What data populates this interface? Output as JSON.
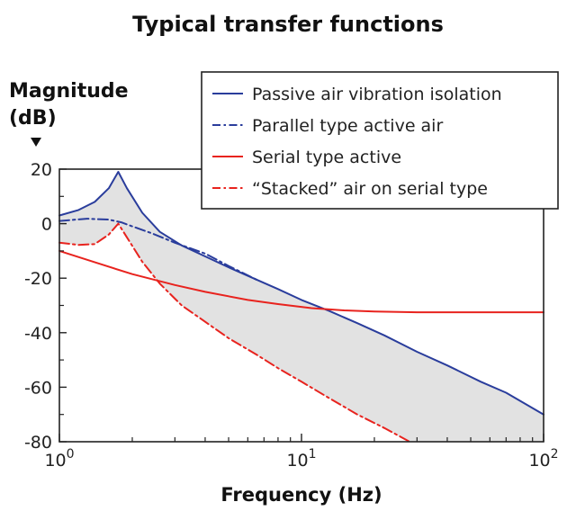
{
  "chart_data": {
    "type": "line",
    "title": "Typical transfer functions",
    "ylabel_line1": "Magnitude",
    "ylabel_line2": "(dB)",
    "xlabel": "Frequency (Hz)",
    "x_scale": "log",
    "xlim": [
      1,
      100
    ],
    "ylim": [
      -80,
      20
    ],
    "grid": false,
    "legend_position": "top-right",
    "x_ticks": [
      {
        "value": 1,
        "base": "10",
        "exp": "0"
      },
      {
        "value": 10,
        "base": "10",
        "exp": "1"
      },
      {
        "value": 100,
        "base": "10",
        "exp": "2"
      }
    ],
    "y_ticks": [
      {
        "value": 20,
        "label": "20"
      },
      {
        "value": 0,
        "label": "0"
      },
      {
        "value": -20,
        "label": "-20"
      },
      {
        "value": -40,
        "label": "-40"
      },
      {
        "value": -60,
        "label": "-60"
      },
      {
        "value": -80,
        "label": "-80"
      }
    ],
    "shaded_region": {
      "between": [
        "Passive air vibration isolation",
        "“Stacked” air on serial type"
      ],
      "color": "#e2e2e2"
    },
    "series": [
      {
        "name": "Passive air vibration isolation",
        "color": "#2a3d9c",
        "style": "solid",
        "x": [
          1,
          1.2,
          1.4,
          1.6,
          1.75,
          1.9,
          2.2,
          2.6,
          3.2,
          4,
          5,
          6.5,
          8,
          10,
          13,
          17,
          22,
          30,
          40,
          55,
          70,
          100
        ],
        "y": [
          3,
          5,
          8,
          13,
          19,
          13,
          4,
          -3,
          -8,
          -12,
          -16,
          -20.5,
          -24,
          -28,
          -32,
          -36.5,
          -41,
          -47,
          -52,
          -58,
          -62,
          -70
        ]
      },
      {
        "name": "Parallel type active air",
        "color": "#2a3d9c",
        "style": "dashdot",
        "x": [
          1,
          1.3,
          1.6,
          1.8,
          2.0,
          2.4,
          3,
          4,
          5,
          6.5
        ],
        "y": [
          1,
          1.8,
          1.5,
          0.5,
          -1,
          -3.5,
          -7,
          -11,
          -15.5,
          -20.5
        ]
      },
      {
        "name": "Serial type active",
        "color": "#e8231e",
        "style": "solid",
        "x": [
          1,
          1.5,
          2,
          3,
          4,
          6,
          8,
          11,
          15,
          20,
          30,
          50,
          100
        ],
        "y": [
          -10,
          -15,
          -18.5,
          -22.5,
          -25,
          -28,
          -29.5,
          -31,
          -31.8,
          -32.2,
          -32.5,
          -32.5,
          -32.5
        ]
      },
      {
        "name": "“Stacked” air on serial type",
        "color": "#e8231e",
        "style": "dashdot",
        "x": [
          1,
          1.2,
          1.4,
          1.6,
          1.75,
          1.9,
          2.2,
          2.6,
          3.2,
          4,
          5,
          6.5,
          8,
          10,
          13,
          17,
          22,
          28
        ],
        "y": [
          -7,
          -7.8,
          -7.5,
          -4,
          0,
          -5,
          -14,
          -22,
          -30,
          -36,
          -42,
          -48,
          -53,
          -58,
          -64,
          -70,
          -75,
          -80
        ]
      }
    ]
  }
}
